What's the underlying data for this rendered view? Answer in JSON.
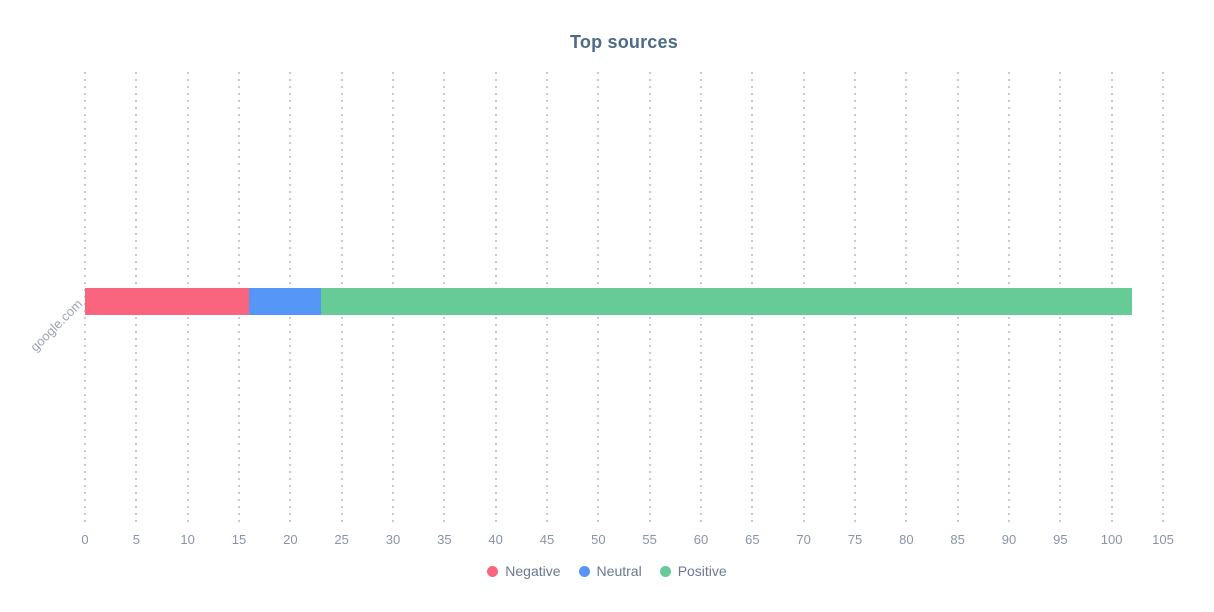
{
  "chart_data": {
    "type": "bar",
    "orientation": "horizontal",
    "stacked": true,
    "title": "Top sources",
    "xlabel": "",
    "ylabel": "",
    "categories": [
      "google.com"
    ],
    "series": [
      {
        "name": "Negative",
        "color": "#f9647f",
        "values": [
          16
        ]
      },
      {
        "name": "Neutral",
        "color": "#5596f6",
        "values": [
          7
        ]
      },
      {
        "name": "Positive",
        "color": "#66cb97",
        "values": [
          79
        ]
      }
    ],
    "totals": [
      102
    ],
    "xlim": [
      0,
      105
    ],
    "xticks": [
      0,
      5,
      10,
      15,
      20,
      25,
      30,
      35,
      40,
      45,
      50,
      55,
      60,
      65,
      70,
      75,
      80,
      85,
      90,
      95,
      100,
      105
    ],
    "grid": "dotted-vertical",
    "legend_position": "bottom",
    "colors": {
      "title_text": "#4e6a87",
      "tick_text": "#8a93a6",
      "legend_text": "#6b7894",
      "category_text": "#9aa3b6",
      "grid_dots": "#c9c9c9",
      "background": "#ffffff"
    }
  }
}
